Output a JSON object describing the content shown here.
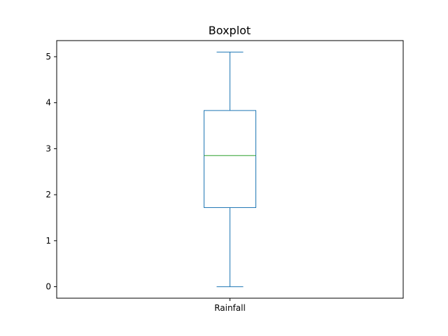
{
  "chart_data": {
    "type": "boxplot",
    "title": "Boxplot",
    "xlabel": "",
    "ylabel": "",
    "categories": [
      "Rainfall"
    ],
    "boxes": [
      {
        "category": "Rainfall",
        "whisker_low": 0,
        "q1": 1.72,
        "median": 2.85,
        "q3": 3.83,
        "whisker_high": 5.1
      }
    ],
    "ylim": [
      -0.25,
      5.35
    ],
    "yticks": [
      0,
      1,
      2,
      3,
      4,
      5
    ],
    "grid": false,
    "legend": "none",
    "colors": {
      "box": "#1f77b4",
      "median": "#2ca02c",
      "axes": "#000000"
    }
  }
}
